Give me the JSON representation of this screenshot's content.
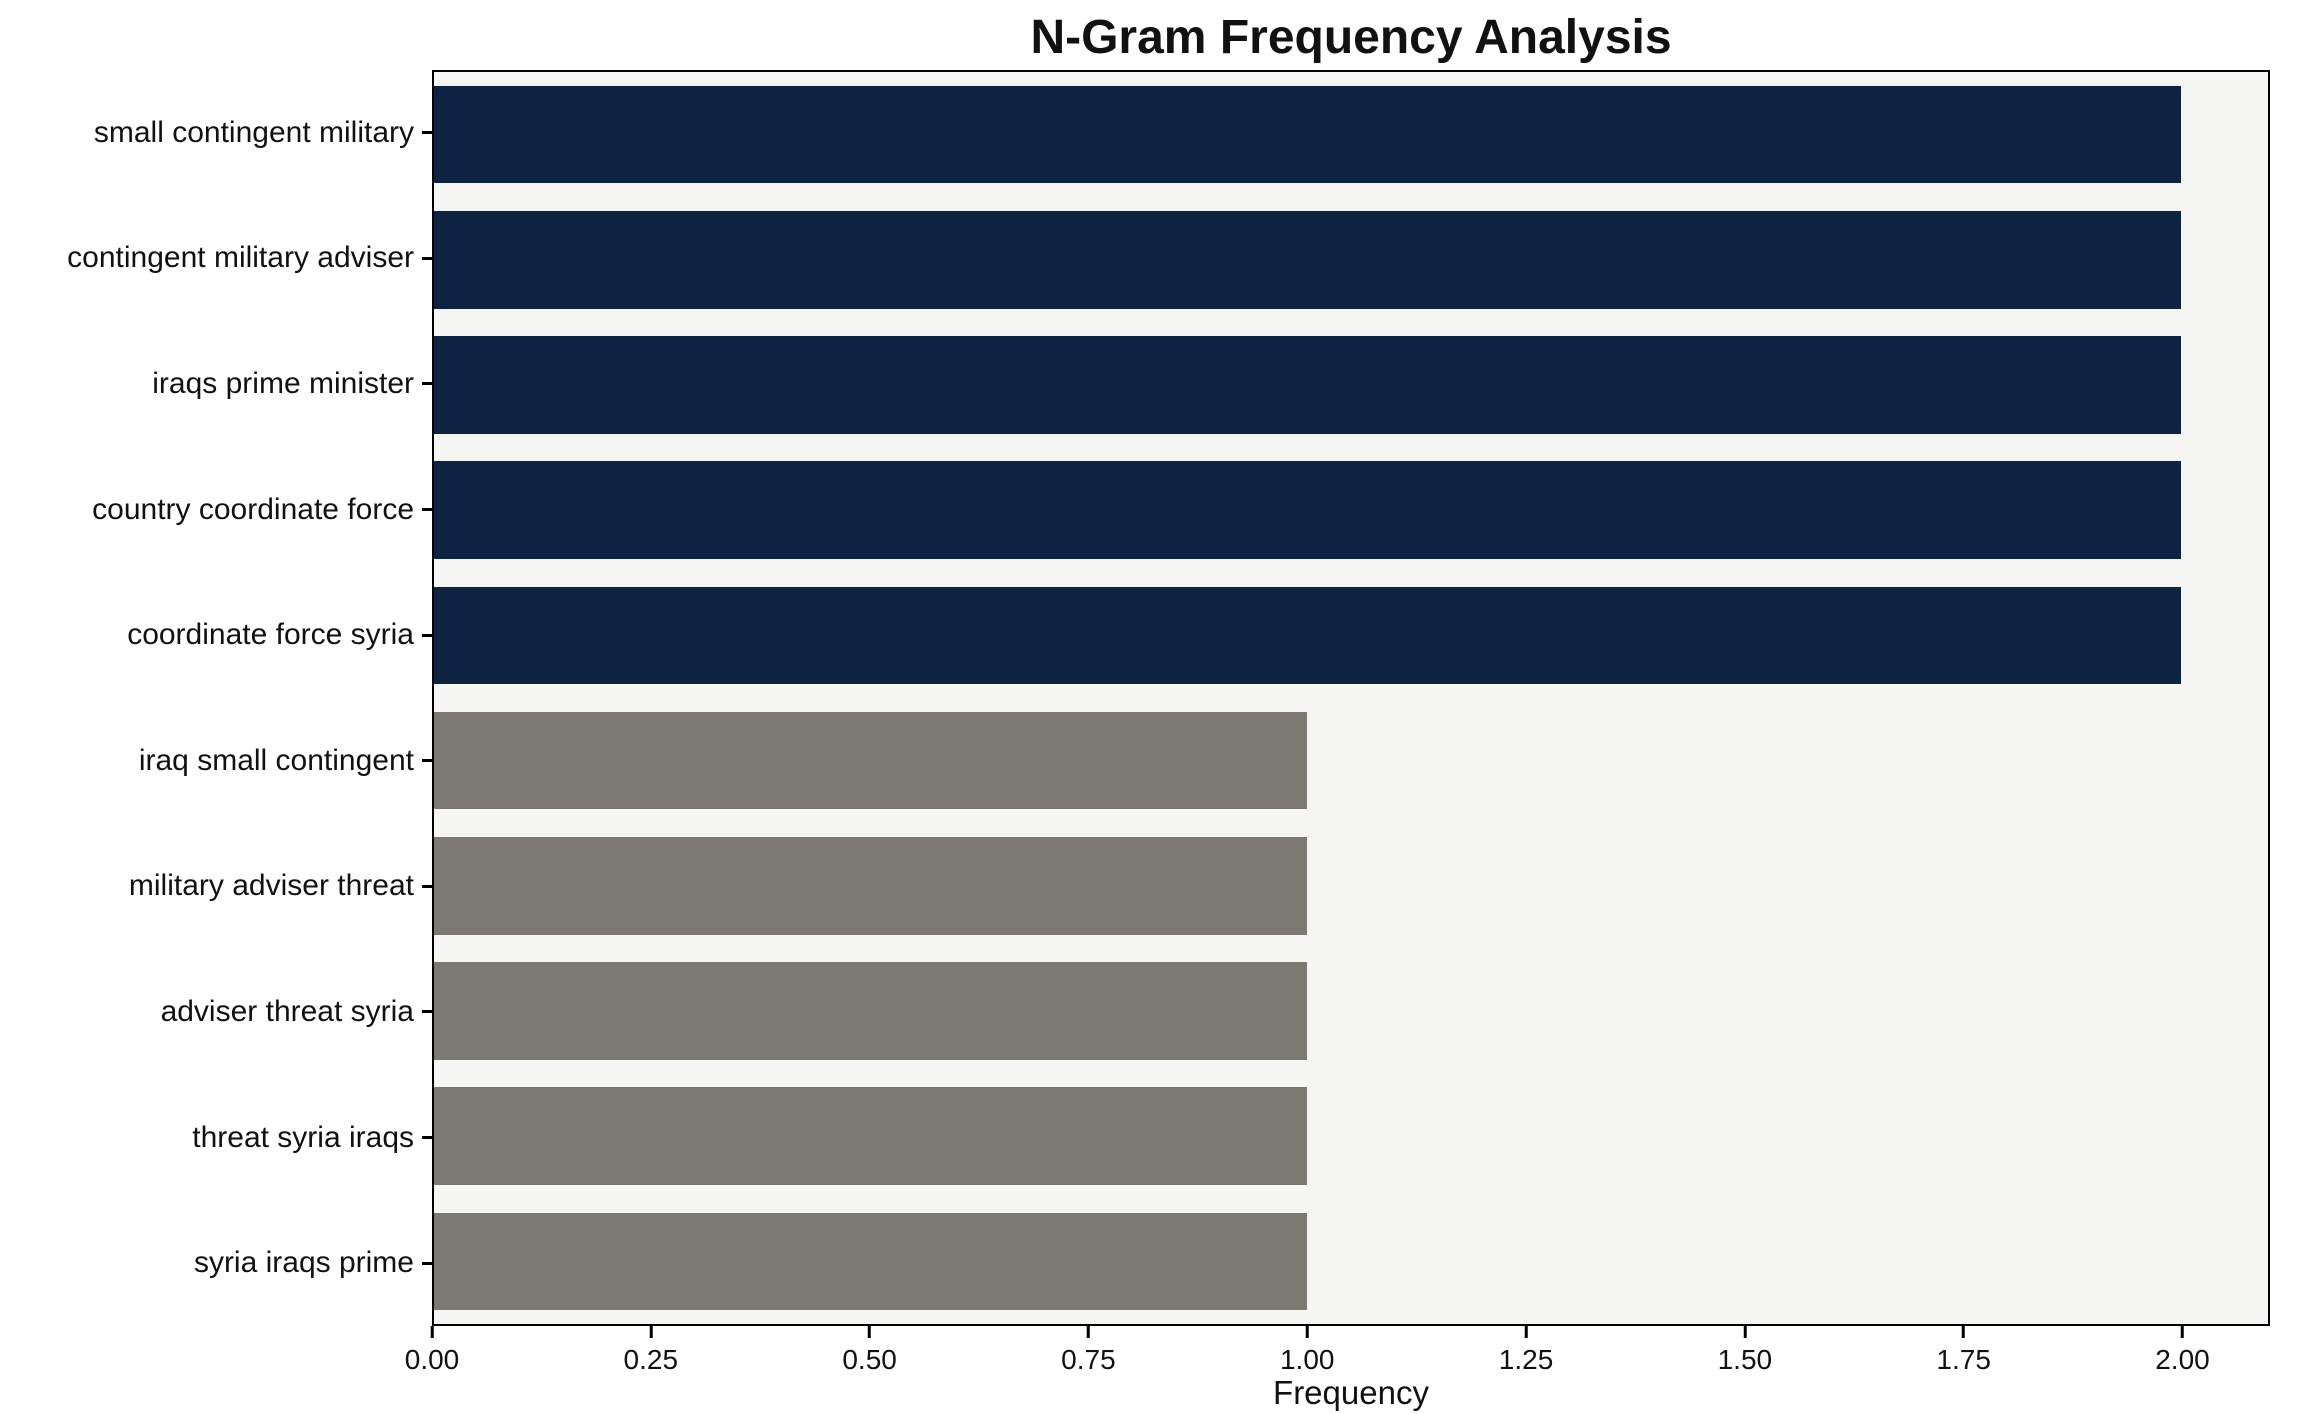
{
  "chart_data": {
    "type": "bar",
    "orientation": "horizontal",
    "title": "N-Gram Frequency Analysis",
    "xlabel": "Frequency",
    "ylabel": "",
    "categories": [
      "small contingent military",
      "contingent military adviser",
      "iraqs prime minister",
      "country coordinate force",
      "coordinate force syria",
      "iraq small contingent",
      "military adviser threat",
      "adviser threat syria",
      "threat syria iraqs",
      "syria iraqs prime"
    ],
    "values": [
      2,
      2,
      2,
      2,
      2,
      1,
      1,
      1,
      1,
      1
    ],
    "bar_colors": [
      "#0e2342",
      "#0e2342",
      "#0e2342",
      "#0e2342",
      "#0e2342",
      "#7c7972",
      "#7c7972",
      "#7c7972",
      "#7c7972",
      "#7c7972"
    ],
    "xlim": [
      0,
      2.1
    ],
    "xticks": [
      0,
      0.25,
      0.5,
      0.75,
      1.0,
      1.25,
      1.5,
      1.75,
      2.0
    ],
    "xtick_labels": [
      "0.00",
      "0.25",
      "0.50",
      "0.75",
      "1.00",
      "1.25",
      "1.50",
      "1.75",
      "2.00"
    ],
    "grid": false,
    "legend": "none",
    "plot_bg": "#f5f5f3"
  }
}
